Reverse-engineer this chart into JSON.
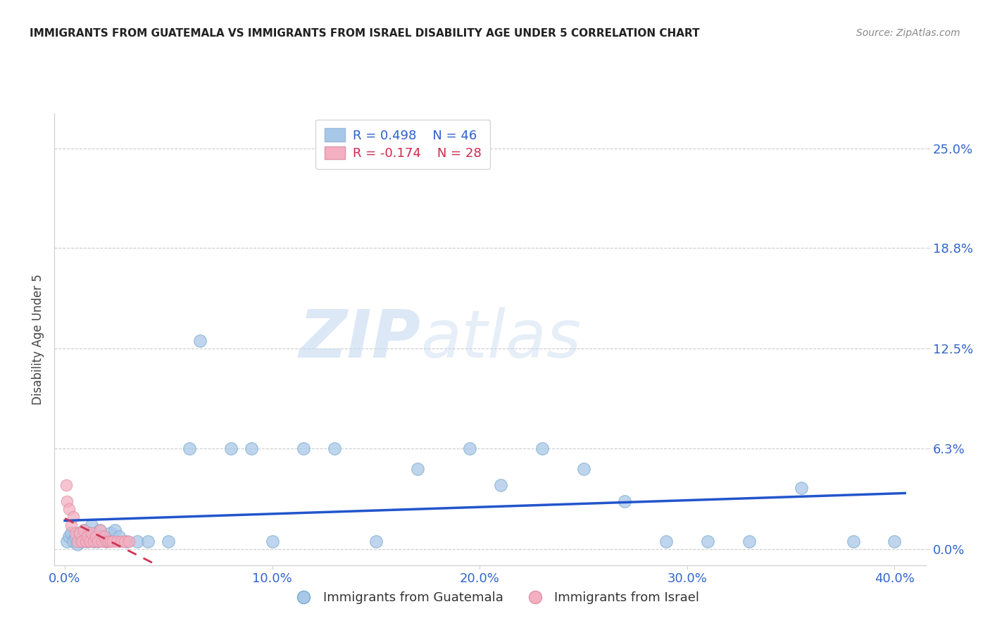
{
  "title": "IMMIGRANTS FROM GUATEMALA VS IMMIGRANTS FROM ISRAEL DISABILITY AGE UNDER 5 CORRELATION CHART",
  "source": "Source: ZipAtlas.com",
  "xlabel_ticks": [
    "0.0%",
    "10.0%",
    "20.0%",
    "30.0%",
    "40.0%"
  ],
  "xlabel_tick_vals": [
    0.0,
    0.1,
    0.2,
    0.3,
    0.4
  ],
  "ylabel": "Disability Age Under 5",
  "ylabel_ticks": [
    "25.0%",
    "18.8%",
    "12.5%",
    "6.3%",
    "0.0%"
  ],
  "ylabel_tick_vals": [
    0.25,
    0.188,
    0.125,
    0.063,
    0.0
  ],
  "xlim": [
    -0.005,
    0.415
  ],
  "ylim": [
    -0.01,
    0.272
  ],
  "guatemala_R": 0.498,
  "guatemala_N": 46,
  "israel_R": -0.174,
  "israel_N": 28,
  "guatemala_color": "#a8c8e8",
  "israel_color": "#f4b0c0",
  "guatemala_line_color": "#2255cc",
  "israel_line_color": "#cc3355",
  "watermark_zip": "ZIP",
  "watermark_atlas": "atlas",
  "guatemala_x": [
    0.001,
    0.002,
    0.003,
    0.004,
    0.005,
    0.006,
    0.007,
    0.008,
    0.009,
    0.01,
    0.011,
    0.012,
    0.013,
    0.014,
    0.015,
    0.016,
    0.017,
    0.018,
    0.02,
    0.022,
    0.024,
    0.026,
    0.03,
    0.035,
    0.04,
    0.05,
    0.06,
    0.065,
    0.08,
    0.09,
    0.1,
    0.115,
    0.13,
    0.15,
    0.17,
    0.195,
    0.21,
    0.23,
    0.25,
    0.27,
    0.29,
    0.31,
    0.33,
    0.355,
    0.38,
    0.4
  ],
  "guatemala_y": [
    0.005,
    0.008,
    0.01,
    0.005,
    0.008,
    0.003,
    0.01,
    0.005,
    0.012,
    0.008,
    0.005,
    0.01,
    0.015,
    0.005,
    0.01,
    0.005,
    0.012,
    0.008,
    0.005,
    0.01,
    0.012,
    0.008,
    0.005,
    0.005,
    0.005,
    0.005,
    0.063,
    0.13,
    0.063,
    0.063,
    0.005,
    0.063,
    0.063,
    0.005,
    0.05,
    0.063,
    0.04,
    0.063,
    0.05,
    0.03,
    0.005,
    0.005,
    0.005,
    0.038,
    0.005,
    0.005
  ],
  "israel_x": [
    0.0005,
    0.001,
    0.002,
    0.003,
    0.004,
    0.005,
    0.006,
    0.007,
    0.008,
    0.009,
    0.01,
    0.011,
    0.012,
    0.013,
    0.014,
    0.015,
    0.016,
    0.017,
    0.018,
    0.019,
    0.02,
    0.021,
    0.022,
    0.023,
    0.025,
    0.027,
    0.029,
    0.031
  ],
  "israel_y": [
    0.04,
    0.03,
    0.025,
    0.015,
    0.02,
    0.01,
    0.005,
    0.01,
    0.005,
    0.012,
    0.005,
    0.008,
    0.005,
    0.01,
    0.005,
    0.008,
    0.005,
    0.012,
    0.005,
    0.008,
    0.005,
    0.005,
    0.005,
    0.005,
    0.005,
    0.005,
    0.005,
    0.005
  ]
}
